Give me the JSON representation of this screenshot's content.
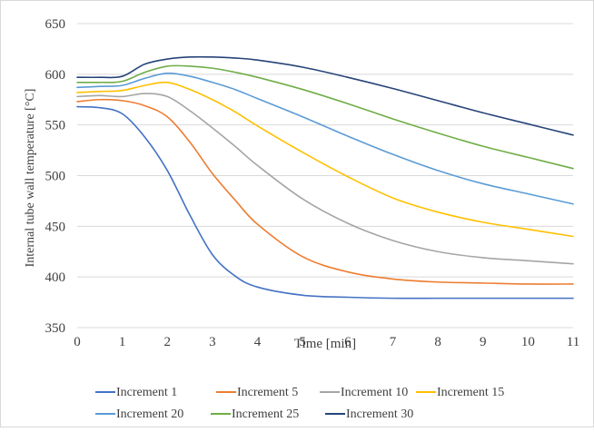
{
  "chart_data": {
    "type": "line",
    "title": "",
    "xlabel": "Time [min]",
    "ylabel": "Internal tube wall temperature [°C]",
    "xlim": [
      0,
      11
    ],
    "ylim": [
      350,
      650
    ],
    "x_ticks": [
      0,
      1,
      2,
      3,
      4,
      5,
      6,
      7,
      8,
      9,
      10,
      11
    ],
    "y_ticks": [
      350,
      400,
      450,
      500,
      550,
      600,
      650
    ],
    "grid": "horizontal",
    "legend_position": "bottom",
    "x": [
      0,
      0.5,
      1,
      1.5,
      2,
      2.5,
      3,
      3.5,
      4,
      5,
      6,
      7,
      8,
      9,
      10,
      11
    ],
    "series": [
      {
        "name": "Increment 1",
        "color": "#4472C4",
        "values": [
          568,
          567,
          561,
          538,
          505,
          461,
          422,
          401,
          390,
          382,
          380,
          379,
          379,
          379,
          379,
          379
        ]
      },
      {
        "name": "Increment 5",
        "color": "#ED7D31",
        "values": [
          573,
          575,
          574,
          569,
          558,
          533,
          502,
          476,
          452,
          420,
          405,
          398,
          395,
          394,
          393,
          393
        ]
      },
      {
        "name": "Increment 10",
        "color": "#A5A5A5",
        "values": [
          578,
          579,
          578,
          581,
          578,
          564,
          547,
          529,
          510,
          477,
          453,
          436,
          425,
          419,
          416,
          413
        ]
      },
      {
        "name": "Increment 15",
        "color": "#FFC000",
        "values": [
          582,
          583,
          584,
          589,
          592,
          585,
          575,
          563,
          549,
          523,
          499,
          478,
          464,
          454,
          447,
          440
        ]
      },
      {
        "name": "Increment 20",
        "color": "#5B9BD5",
        "values": [
          587,
          588,
          589,
          596,
          601,
          598,
          592,
          585,
          576,
          558,
          539,
          521,
          505,
          492,
          482,
          472
        ]
      },
      {
        "name": "Increment 25",
        "color": "#70AD47",
        "values": [
          592,
          592,
          593,
          602,
          608,
          608,
          606,
          602,
          597,
          585,
          571,
          556,
          542,
          529,
          518,
          507
        ]
      },
      {
        "name": "Increment 30",
        "color": "#264478",
        "values": [
          597,
          597,
          598,
          610,
          615,
          617,
          617,
          616,
          614,
          607,
          597,
          586,
          574,
          562,
          551,
          540
        ]
      }
    ]
  }
}
